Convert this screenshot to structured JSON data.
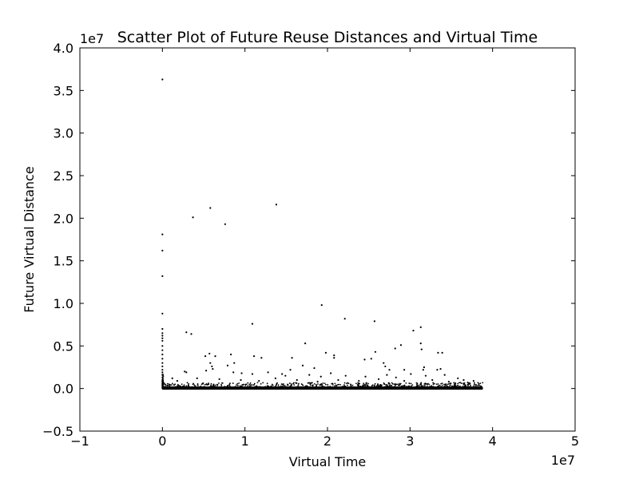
{
  "chart_data": {
    "type": "scatter",
    "title": "Scatter Plot of Future Reuse Distances and Virtual Time",
    "xlabel": "Virtual Time",
    "ylabel": "Future Virtual Distance",
    "x_offset_label": "1e7",
    "y_offset_label": "1e7",
    "xlim": [
      -1,
      5
    ],
    "ylim": [
      -0.5,
      4.0
    ],
    "scale_factor": 10000000,
    "x_ticks": [
      "−1",
      "0",
      "1",
      "2",
      "3",
      "4",
      "5"
    ],
    "y_ticks": [
      "−0.5",
      "0.0",
      "0.5",
      "1.0",
      "1.5",
      "2.0",
      "2.5",
      "3.0",
      "3.5",
      "4.0"
    ],
    "grid": false,
    "legend": "none",
    "marker_color": "#000000",
    "points": [
      [
        0.0,
        3.63
      ],
      [
        0.0,
        1.81
      ],
      [
        0.0,
        1.62
      ],
      [
        0.0,
        1.32
      ],
      [
        0.0,
        0.88
      ],
      [
        0.0,
        0.7
      ],
      [
        0.0,
        0.65
      ],
      [
        0.0,
        0.62
      ],
      [
        0.0,
        0.59
      ],
      [
        0.0,
        0.56
      ],
      [
        0.0,
        0.5
      ],
      [
        0.0,
        0.45
      ],
      [
        0.0,
        0.4
      ],
      [
        0.0,
        0.35
      ],
      [
        0.0,
        0.3
      ],
      [
        0.0,
        0.26
      ],
      [
        0.0,
        0.22
      ],
      [
        0.0,
        0.19
      ],
      [
        0.0,
        0.16
      ],
      [
        0.0,
        0.13
      ],
      [
        0.0,
        0.1
      ],
      [
        0.0,
        0.08
      ],
      [
        0.0,
        0.06
      ],
      [
        0.0,
        0.04
      ],
      [
        0.0,
        0.02
      ],
      [
        0.58,
        2.12
      ],
      [
        1.38,
        2.16
      ],
      [
        0.37,
        2.01
      ],
      [
        0.76,
        1.93
      ],
      [
        1.93,
        0.98
      ],
      [
        2.21,
        0.82
      ],
      [
        2.57,
        0.79
      ],
      [
        1.09,
        0.76
      ],
      [
        3.13,
        0.72
      ],
      [
        3.04,
        0.68
      ],
      [
        0.29,
        0.66
      ],
      [
        0.35,
        0.64
      ],
      [
        1.73,
        0.53
      ],
      [
        2.89,
        0.51
      ],
      [
        3.13,
        0.53
      ],
      [
        3.14,
        0.46
      ],
      [
        2.82,
        0.47
      ],
      [
        3.34,
        0.42
      ],
      [
        3.39,
        0.42
      ],
      [
        2.58,
        0.43
      ],
      [
        1.98,
        0.42
      ],
      [
        2.08,
        0.39
      ],
      [
        2.08,
        0.36
      ],
      [
        0.83,
        0.4
      ],
      [
        0.57,
        0.41
      ],
      [
        0.52,
        0.38
      ],
      [
        1.11,
        0.38
      ],
      [
        1.2,
        0.36
      ],
      [
        1.57,
        0.36
      ],
      [
        2.45,
        0.34
      ],
      [
        2.53,
        0.35
      ],
      [
        0.64,
        0.38
      ],
      [
        0.58,
        0.3
      ],
      [
        0.6,
        0.26
      ],
      [
        0.79,
        0.27
      ],
      [
        0.87,
        0.3
      ],
      [
        1.7,
        0.27
      ],
      [
        1.84,
        0.24
      ],
      [
        1.55,
        0.22
      ],
      [
        2.68,
        0.3
      ],
      [
        2.7,
        0.26
      ],
      [
        2.75,
        0.22
      ],
      [
        2.93,
        0.22
      ],
      [
        3.17,
        0.25
      ],
      [
        3.16,
        0.22
      ],
      [
        3.33,
        0.22
      ],
      [
        3.37,
        0.23
      ],
      [
        0.27,
        0.2
      ],
      [
        0.29,
        0.19
      ],
      [
        0.53,
        0.21
      ],
      [
        0.61,
        0.23
      ],
      [
        0.86,
        0.19
      ],
      [
        0.96,
        0.18
      ],
      [
        1.09,
        0.17
      ],
      [
        1.28,
        0.19
      ],
      [
        1.45,
        0.17
      ],
      [
        1.49,
        0.15
      ],
      [
        1.78,
        0.16
      ],
      [
        1.92,
        0.14
      ],
      [
        2.04,
        0.18
      ],
      [
        2.22,
        0.15
      ],
      [
        2.46,
        0.14
      ],
      [
        2.72,
        0.16
      ],
      [
        2.83,
        0.13
      ],
      [
        3.01,
        0.17
      ],
      [
        3.19,
        0.15
      ],
      [
        3.42,
        0.16
      ],
      [
        3.58,
        0.12
      ],
      [
        3.65,
        0.1
      ],
      [
        3.77,
        0.09
      ],
      [
        0.12,
        0.12
      ],
      [
        0.18,
        0.09
      ],
      [
        0.42,
        0.12
      ],
      [
        0.69,
        0.11
      ],
      [
        0.95,
        0.1
      ],
      [
        1.17,
        0.09
      ],
      [
        1.37,
        0.12
      ],
      [
        1.63,
        0.1
      ],
      [
        1.88,
        0.08
      ],
      [
        2.13,
        0.1
      ],
      [
        2.38,
        0.09
      ],
      [
        2.62,
        0.11
      ],
      [
        2.93,
        0.09
      ],
      [
        3.27,
        0.1
      ],
      [
        3.47,
        0.08
      ],
      [
        3.7,
        0.07
      ]
    ],
    "dense_band": {
      "x_range": [
        0.0,
        3.88
      ],
      "y_range": [
        0.0,
        0.07
      ],
      "description_value_note": "continuous dense band of points near zero distance"
    }
  }
}
